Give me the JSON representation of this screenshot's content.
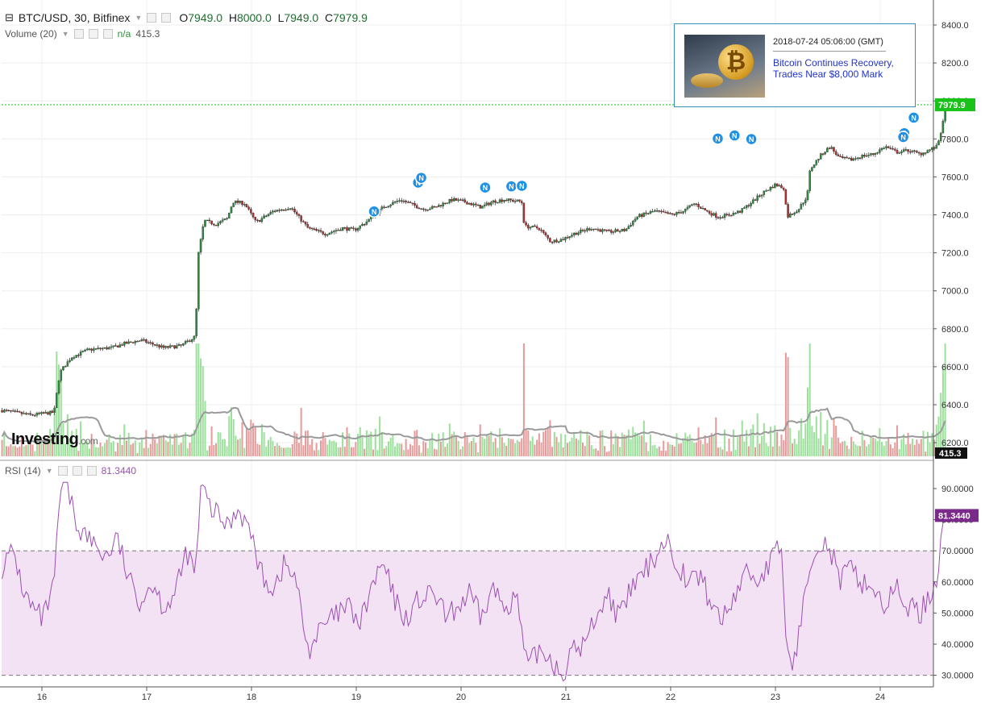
{
  "header": {
    "symbol": "BTC/USD, 30, Bitfinex",
    "open_label": "O",
    "open": "7949.0",
    "high_label": "H",
    "high": "8000.0",
    "low_label": "L",
    "low": "7949.0",
    "close_label": "C",
    "close": "7979.9"
  },
  "volume_legend": {
    "label": "Volume (20)",
    "ma_value": "n/a",
    "value": "415.3"
  },
  "rsi_legend": {
    "label": "RSI (14)",
    "value": "81.3440"
  },
  "logo": {
    "main": "Investing",
    "suffix": ".com"
  },
  "news": {
    "date": "2018-07-24 05:06:00 (GMT)",
    "title": "Bitcoin Continues Recovery, Trades Near $8,000 Mark"
  },
  "price_badge": "7979.9",
  "volume_badge": "415.3",
  "rsi_badge": "81.3440",
  "colors": {
    "up": "#2e8b3d",
    "down": "#b22f2f",
    "vol_up": "#9be09b",
    "vol_down": "#e79a9a",
    "rsi": "#9b4fb0",
    "rsi_band": "#f2e2f4",
    "last_price": "#19c219",
    "news_marker": "#1e90e6"
  },
  "chart_data": [
    {
      "type": "candlestick",
      "title": "BTC/USD, 30, Bitfinex",
      "x": [
        "16",
        "17",
        "18",
        "19",
        "20",
        "21",
        "22",
        "23",
        "24"
      ],
      "y_ticks": [
        6200,
        6400,
        6600,
        6800,
        7000,
        7200,
        7400,
        7600,
        7800,
        8000,
        8200,
        8400
      ],
      "y_tick_labels": [
        "6200.0",
        "6400.0",
        "6600.0",
        "6800.0",
        "7000.0",
        "7200.0",
        "7400.0",
        "7600.0",
        "7800.0",
        "8000.0",
        "8200.0",
        "8400.0"
      ],
      "ylim": [
        6120,
        8500
      ],
      "grid": true,
      "close_path": [
        [
          0.0,
          6370
        ],
        [
          0.5,
          6345
        ],
        [
          0.9,
          6360
        ],
        [
          1.0,
          6570
        ],
        [
          1.2,
          6650
        ],
        [
          1.5,
          6690
        ],
        [
          1.9,
          6700
        ],
        [
          2.1,
          6720
        ],
        [
          2.4,
          6740
        ],
        [
          2.8,
          6700
        ],
        [
          3.1,
          6710
        ],
        [
          3.35,
          6760
        ],
        [
          3.4,
          7190
        ],
        [
          3.5,
          7370
        ],
        [
          3.7,
          7350
        ],
        [
          3.9,
          7380
        ],
        [
          4.0,
          7470
        ],
        [
          4.2,
          7460
        ],
        [
          4.4,
          7360
        ],
        [
          4.7,
          7420
        ],
        [
          5.0,
          7440
        ],
        [
          5.3,
          7330
        ],
        [
          5.6,
          7300
        ],
        [
          5.9,
          7330
        ],
        [
          6.1,
          7320
        ],
        [
          6.3,
          7360
        ],
        [
          6.6,
          7440
        ],
        [
          6.9,
          7480
        ],
        [
          7.3,
          7430
        ],
        [
          7.5,
          7440
        ],
        [
          7.8,
          7480
        ],
        [
          8.0,
          7470
        ],
        [
          8.3,
          7440
        ],
        [
          8.5,
          7470
        ],
        [
          8.7,
          7480
        ],
        [
          9.0,
          7470
        ],
        [
          9.05,
          7340
        ],
        [
          9.3,
          7330
        ],
        [
          9.5,
          7260
        ],
        [
          9.7,
          7270
        ],
        [
          9.9,
          7300
        ],
        [
          10.2,
          7330
        ],
        [
          10.5,
          7310
        ],
        [
          10.8,
          7320
        ],
        [
          11.0,
          7390
        ],
        [
          11.3,
          7420
        ],
        [
          11.6,
          7400
        ],
        [
          11.8,
          7420
        ],
        [
          12.0,
          7460
        ],
        [
          12.2,
          7420
        ],
        [
          12.4,
          7390
        ],
        [
          12.6,
          7400
        ],
        [
          12.8,
          7420
        ],
        [
          13.0,
          7470
        ],
        [
          13.2,
          7520
        ],
        [
          13.4,
          7560
        ],
        [
          13.55,
          7540
        ],
        [
          13.6,
          7390
        ],
        [
          13.8,
          7430
        ],
        [
          13.95,
          7500
        ],
        [
          14.0,
          7640
        ],
        [
          14.2,
          7720
        ],
        [
          14.35,
          7760
        ],
        [
          14.5,
          7700
        ],
        [
          14.7,
          7690
        ],
        [
          14.9,
          7710
        ],
        [
          15.1,
          7720
        ],
        [
          15.3,
          7760
        ],
        [
          15.5,
          7730
        ],
        [
          15.7,
          7740
        ],
        [
          15.9,
          7720
        ],
        [
          16.05,
          7740
        ],
        [
          16.2,
          7760
        ],
        [
          16.25,
          7820
        ],
        [
          16.3,
          7880
        ],
        [
          16.34,
          7979.9
        ]
      ],
      "last_price": 7979.9
    },
    {
      "type": "bar",
      "title": "Volume (20)",
      "values_note": "volume bars, colored by candle direction",
      "last_value": 415.3
    },
    {
      "type": "line",
      "title": "RSI (14)",
      "y_ticks": [
        30,
        40,
        50,
        60,
        70,
        80,
        90
      ],
      "y_tick_labels": [
        "30.0000",
        "40.0000",
        "50.0000",
        "60.0000",
        "70.0000",
        "80.0000",
        "90.0000"
      ],
      "ylim": [
        25,
        95
      ],
      "band": [
        30,
        70
      ],
      "last_value": 81.344,
      "values": [
        [
          0.0,
          65
        ],
        [
          0.2,
          70
        ],
        [
          0.35,
          58
        ],
        [
          0.5,
          52
        ],
        [
          0.7,
          48
        ],
        [
          0.9,
          58
        ],
        [
          1.0,
          88
        ],
        [
          1.1,
          92
        ],
        [
          1.3,
          78
        ],
        [
          1.5,
          74
        ],
        [
          1.8,
          68
        ],
        [
          2.0,
          74
        ],
        [
          2.2,
          60
        ],
        [
          2.4,
          54
        ],
        [
          2.6,
          60
        ],
        [
          2.8,
          52
        ],
        [
          3.0,
          56
        ],
        [
          3.2,
          70
        ],
        [
          3.35,
          62
        ],
        [
          3.45,
          91
        ],
        [
          3.6,
          84
        ],
        [
          3.9,
          78
        ],
        [
          4.1,
          84
        ],
        [
          4.3,
          76
        ],
        [
          4.5,
          62
        ],
        [
          4.7,
          58
        ],
        [
          4.9,
          66
        ],
        [
          5.1,
          60
        ],
        [
          5.2,
          48
        ],
        [
          5.3,
          38
        ],
        [
          5.5,
          44
        ],
        [
          5.7,
          48
        ],
        [
          6.0,
          52
        ],
        [
          6.2,
          46
        ],
        [
          6.4,
          58
        ],
        [
          6.6,
          66
        ],
        [
          6.8,
          54
        ],
        [
          7.0,
          48
        ],
        [
          7.2,
          54
        ],
        [
          7.5,
          56
        ],
        [
          7.7,
          48
        ],
        [
          7.9,
          52
        ],
        [
          8.1,
          56
        ],
        [
          8.3,
          48
        ],
        [
          8.5,
          58
        ],
        [
          8.7,
          52
        ],
        [
          8.9,
          56
        ],
        [
          9.0,
          44
        ],
        [
          9.1,
          32
        ],
        [
          9.3,
          38
        ],
        [
          9.5,
          36
        ],
        [
          9.7,
          30
        ],
        [
          9.9,
          38
        ],
        [
          10.1,
          40
        ],
        [
          10.3,
          50
        ],
        [
          10.5,
          56
        ],
        [
          10.7,
          48
        ],
        [
          10.9,
          58
        ],
        [
          11.1,
          62
        ],
        [
          11.3,
          68
        ],
        [
          11.5,
          74
        ],
        [
          11.7,
          66
        ],
        [
          11.9,
          60
        ],
        [
          12.1,
          62
        ],
        [
          12.3,
          52
        ],
        [
          12.5,
          48
        ],
        [
          12.7,
          56
        ],
        [
          12.9,
          64
        ],
        [
          13.1,
          60
        ],
        [
          13.3,
          66
        ],
        [
          13.5,
          72
        ],
        [
          13.6,
          36
        ],
        [
          13.7,
          34
        ],
        [
          13.8,
          42
        ],
        [
          13.9,
          54
        ],
        [
          14.0,
          68
        ],
        [
          14.2,
          74
        ],
        [
          14.4,
          68
        ],
        [
          14.5,
          60
        ],
        [
          14.7,
          64
        ],
        [
          14.9,
          60
        ],
        [
          15.1,
          58
        ],
        [
          15.3,
          52
        ],
        [
          15.5,
          58
        ],
        [
          15.7,
          52
        ],
        [
          15.9,
          50
        ],
        [
          16.1,
          56
        ],
        [
          16.2,
          62
        ],
        [
          16.3,
          81.344
        ]
      ]
    }
  ]
}
